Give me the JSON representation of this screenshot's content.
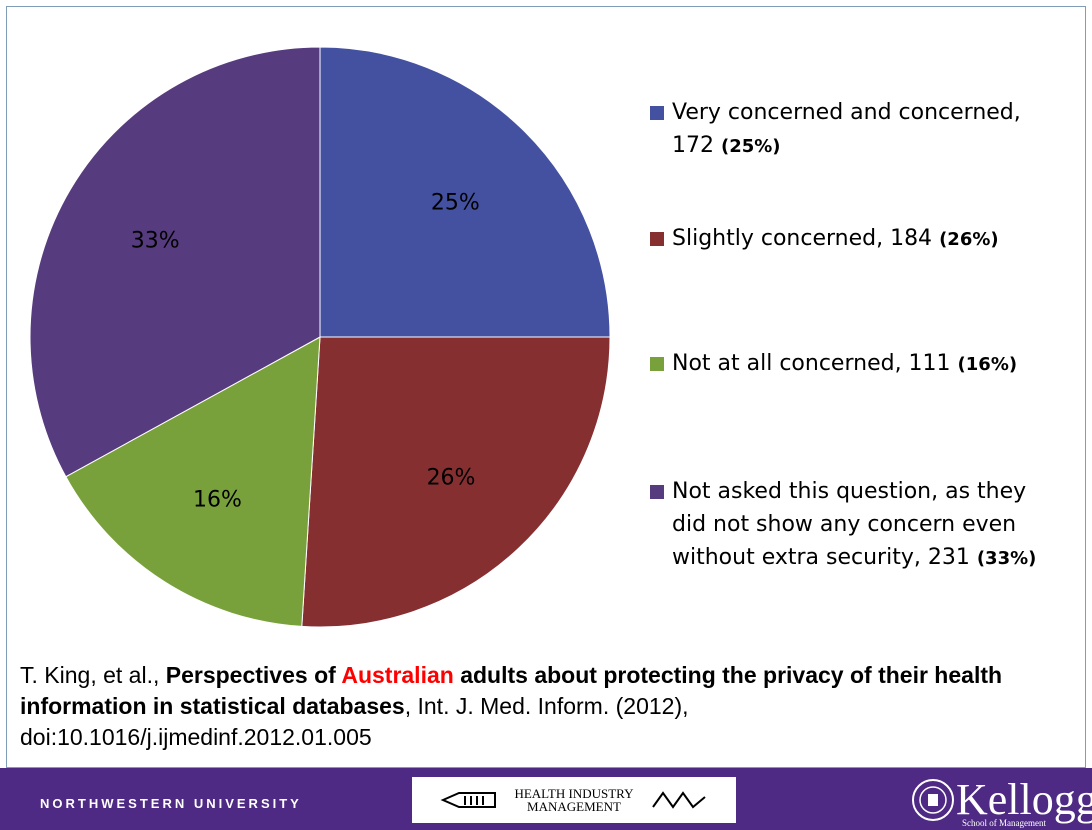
{
  "chart_data": {
    "type": "pie",
    "slices": [
      {
        "label": "Very concerned and concerned,",
        "count": "172",
        "pct_text": "(25%)",
        "value": 25,
        "slice_label": "25%",
        "color": "#4451a0"
      },
      {
        "label": "Slightly concerned, 184",
        "count": "",
        "pct_text": "(26%)",
        "value": 26,
        "slice_label": "26%",
        "color": "#862f31"
      },
      {
        "label": "Not at all concerned, 111",
        "count": "",
        "pct_text": "(16%)",
        "value": 16,
        "slice_label": "16%",
        "color": "#79a13b"
      },
      {
        "label": "Not asked this question, as they\ndid not show any concern  even\nwithout extra security,  231",
        "count": "",
        "pct_text": "(33%)",
        "value": 33,
        "slice_label": "33%",
        "color": "#563b7e"
      }
    ]
  },
  "citation": {
    "authors": "T. King, et al., ",
    "title_part1": "Perspectives of ",
    "title_highlight": "Australian",
    "title_part2": " adults about protecting the privacy of their health information in statistical databases",
    "journal": ", Int. J. Med. Inform. (2012),",
    "doi": "doi:10.1016/j.ijmedinf.2012.01.005"
  },
  "footer": {
    "university": "NORTHWESTERN UNIVERSITY",
    "him_logo_text": "HEALTH INDUSTRY MANAGEMENT",
    "kellogg_word": "Kellogg",
    "kellogg_sub": "School of Management",
    "bg_color": "#4e2a84"
  }
}
